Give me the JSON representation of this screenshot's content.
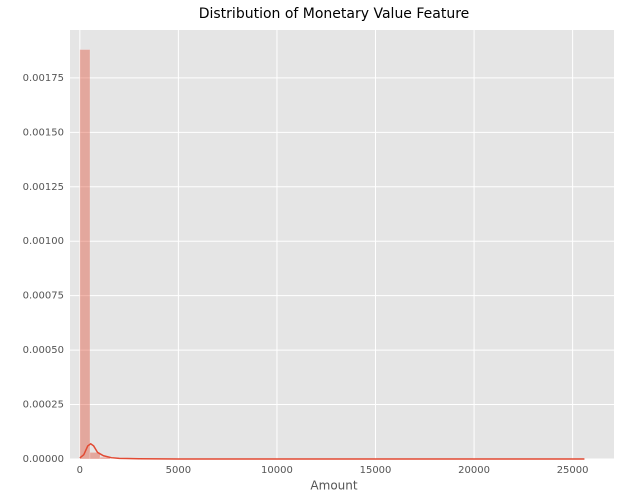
{
  "chart_data": {
    "type": "histogram",
    "title": "Distribution of Monetary Value Feature",
    "xlabel": "Amount",
    "bins": [
      0,
      512,
      1024,
      1536,
      2048,
      2560,
      3072,
      3584,
      4096,
      4608,
      5120,
      5632,
      6144,
      6656,
      7168,
      7680,
      8192,
      8704,
      9216,
      9728,
      10240,
      10752,
      11264,
      11776,
      12288,
      12800,
      13312,
      13824,
      14336,
      14848,
      15360,
      15872,
      16384,
      16896,
      17408,
      17920,
      18432,
      18944,
      19456,
      19968,
      20480,
      20992,
      21504,
      22016,
      22528,
      23040,
      23552,
      24064,
      24576,
      25088,
      25600
    ],
    "values": [
      0.00188,
      3e-05,
      8e-06,
      0,
      0,
      0,
      0,
      0,
      0,
      0,
      0,
      0,
      0,
      0,
      0,
      0,
      0,
      0,
      0,
      0,
      0,
      0,
      0,
      0,
      0,
      0,
      0,
      0,
      0,
      0,
      0,
      0,
      0,
      0,
      0,
      0,
      0,
      0,
      0,
      0,
      0,
      0,
      0,
      0,
      0,
      0,
      0,
      0,
      0,
      0
    ],
    "color": "#e24a33",
    "kde": {
      "x": [
        0,
        200,
        400,
        550,
        700,
        900,
        1200,
        1600,
        2000,
        3000,
        5000,
        10000,
        15000,
        20000,
        25600
      ],
      "values": [
        5e-06,
        2e-05,
        6e-05,
        7e-05,
        6e-05,
        3e-05,
        1.5e-05,
        6e-06,
        3e-06,
        1e-06,
        0,
        0,
        0,
        0,
        0
      ]
    },
    "xlim": [
      -500,
      27100
    ],
    "ylim": [
      0,
      0.00197
    ],
    "xticks": [
      0,
      5000,
      10000,
      15000,
      20000,
      25000
    ],
    "yticks": [
      {
        "value": 0,
        "label": "0.00000"
      },
      {
        "value": 0.00025,
        "label": "0.00025"
      },
      {
        "value": 0.0005,
        "label": "0.00050"
      },
      {
        "value": 0.00075,
        "label": "0.00075"
      },
      {
        "value": 0.001,
        "label": "0.00100"
      },
      {
        "value": 0.00125,
        "label": "0.00125"
      },
      {
        "value": 0.0015,
        "label": "0.00150"
      },
      {
        "value": 0.00175,
        "label": "0.00175"
      }
    ],
    "grid": true
  }
}
